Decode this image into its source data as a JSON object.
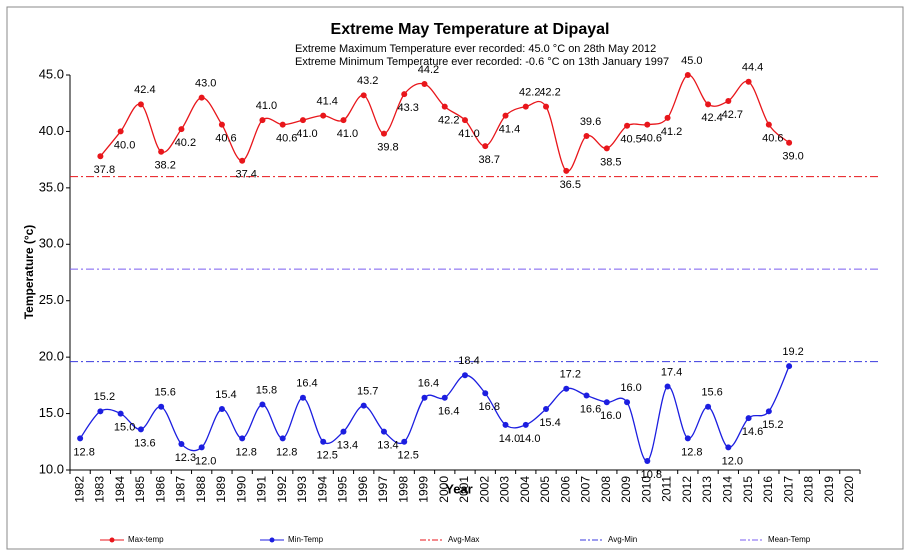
{
  "chart_data": {
    "type": "line",
    "title": "Extreme May Temperature at Dipayal",
    "annotations": [
      "Extreme Maximum Temperature ever recorded: 45.0 °C on 28th May 2012",
      "Extreme Minimum Temperature ever recorded: -0.6 °C on 13th January 1997"
    ],
    "x_label": "Year",
    "y_label": "Temperature (°c)",
    "categories": [
      "1982",
      "1983",
      "1984",
      "1985",
      "1986",
      "1987",
      "1988",
      "1989",
      "1990",
      "1991",
      "1992",
      "1993",
      "1994",
      "1995",
      "1996",
      "1997",
      "1998",
      "1999",
      "2000",
      "2001",
      "2002",
      "2003",
      "2004",
      "2005",
      "2006",
      "2007",
      "2008",
      "2009",
      "2010",
      "2011",
      "2012",
      "2013",
      "2014",
      "2015",
      "2016",
      "2017",
      "2018",
      "2019",
      "2020"
    ],
    "series": [
      {
        "name": "Max-temp",
        "color": "#e8161b",
        "values": [
          null,
          37.8,
          40.0,
          42.4,
          38.2,
          40.2,
          43.0,
          40.6,
          37.4,
          41.0,
          40.6,
          41.0,
          41.4,
          41.0,
          43.2,
          39.8,
          43.3,
          44.2,
          42.2,
          41.0,
          38.7,
          41.4,
          42.2,
          42.2,
          36.5,
          39.6,
          38.5,
          40.5,
          40.6,
          41.2,
          45.0,
          42.4,
          42.7,
          44.4,
          40.6,
          39.0,
          null,
          null,
          null
        ],
        "value_labels": [
          null,
          "37.8",
          "40.0",
          "42.4",
          "38.2",
          "40.2",
          "43.0",
          "40.6",
          "37.4",
          "41.0",
          "40.6",
          "41.0",
          "41.4",
          "41.0",
          "43.2",
          "39.8",
          "43.3",
          "44.2",
          "42.2",
          "41.0",
          "38.7",
          "41.4",
          "42.2",
          "42.2",
          "36.5",
          "39.6",
          "38.5",
          "40.5",
          "40.6",
          "41.2",
          "45.0",
          "42.4",
          "42.7",
          "44.4",
          "40.6",
          "39.0",
          null,
          null,
          null
        ]
      },
      {
        "name": "Min-Temp",
        "color": "#1c1ee0",
        "values": [
          12.8,
          15.2,
          15.0,
          13.6,
          15.6,
          12.3,
          12.0,
          15.4,
          12.8,
          15.8,
          12.8,
          16.4,
          12.5,
          13.4,
          15.7,
          13.4,
          12.5,
          16.4,
          16.4,
          18.4,
          16.8,
          14.0,
          14.0,
          15.4,
          17.2,
          16.6,
          16.0,
          16.0,
          10.8,
          17.4,
          12.8,
          15.6,
          12.0,
          14.6,
          15.2,
          19.2,
          null,
          null,
          null
        ],
        "value_labels": [
          "12.8",
          "15.2",
          "15.0",
          "13.6",
          "15.6",
          "12.3",
          "12.0",
          "15.4",
          "12.8",
          "15.8",
          "12.8",
          "16.4",
          "12.5",
          "13.4",
          "15.7",
          "13.4",
          "12.5",
          "16.4",
          "16.4",
          "18.4",
          "16.8",
          "14.0",
          "14.0",
          "15.4",
          "17.2",
          "16.6",
          "16.0",
          "16.0",
          "10.8",
          "17.4",
          "12.8",
          "15.6",
          "12.0",
          "14.6",
          "15.2",
          "19.2",
          null,
          null,
          null
        ]
      }
    ],
    "reference_lines": [
      {
        "name": "Avg-Max",
        "color": "#e8161b",
        "value": 36.0
      },
      {
        "name": "Avg-Min",
        "color": "#3a3adf",
        "value": 19.6
      },
      {
        "name": "Mean-Temp",
        "color": "#7a5cf0",
        "value": 27.8
      }
    ],
    "ylim": [
      10,
      45
    ],
    "yticks": [
      {
        "value": 10,
        "label": "10.0"
      },
      {
        "value": 15,
        "label": "15.0"
      },
      {
        "value": 20,
        "label": "20.0"
      },
      {
        "value": 25,
        "label": "25.0"
      },
      {
        "value": 30,
        "label": "30.0"
      },
      {
        "value": 35,
        "label": "35.0"
      },
      {
        "value": 40,
        "label": "40.0"
      },
      {
        "value": 45,
        "label": "45.0"
      }
    ],
    "legend": "bottom"
  }
}
